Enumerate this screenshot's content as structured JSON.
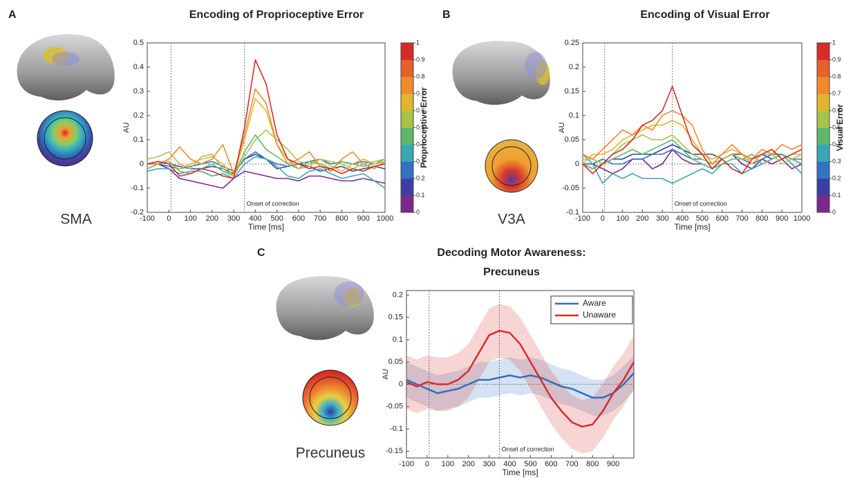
{
  "chart_data": [
    {
      "type": "line",
      "panel": "A",
      "title": "Encoding of Proprioceptive Error",
      "region": "SMA",
      "x_label": "Time [ms]",
      "y_label": "AU",
      "annotation": "Onset of correction",
      "x": [
        -100,
        -50,
        0,
        50,
        100,
        150,
        200,
        250,
        300,
        350,
        400,
        450,
        500,
        550,
        600,
        650,
        700,
        750,
        800,
        850,
        900,
        950,
        1000
      ],
      "xlim": [
        -100,
        1000
      ],
      "xticks": [
        -100,
        0,
        100,
        200,
        300,
        400,
        500,
        600,
        700,
        800,
        900,
        1000
      ],
      "ylim": [
        -0.2,
        0.5
      ],
      "yticks": [
        -0.2,
        -0.1,
        0,
        0.1,
        0.2,
        0.3,
        0.4,
        0.5
      ],
      "vlines": [
        10,
        350
      ],
      "hline": 0,
      "series": [
        {
          "color": "#7b2a8b",
          "values": [
            0,
            0,
            -0.02,
            -0.06,
            -0.07,
            -0.08,
            -0.09,
            -0.1,
            -0.06,
            -0.03,
            -0.04,
            -0.05,
            -0.06,
            -0.06,
            -0.07,
            -0.05,
            -0.05,
            -0.06,
            -0.07,
            -0.07,
            -0.06,
            -0.07,
            -0.08
          ]
        },
        {
          "color": "#3b3fa3",
          "values": [
            0,
            0.01,
            0,
            -0.01,
            -0.02,
            -0.02,
            -0.01,
            -0.02,
            -0.04,
            0.02,
            0.04,
            0.02,
            -0.02,
            -0.01,
            0,
            -0.01,
            -0.03,
            -0.02,
            -0.01,
            -0.03,
            -0.02,
            -0.01,
            -0.02
          ]
        },
        {
          "color": "#3172c2",
          "values": [
            0,
            0,
            -0.01,
            -0.02,
            -0.01,
            0,
            0.01,
            -0.01,
            -0.03,
            0.02,
            0.05,
            0.02,
            0,
            -0.01,
            0,
            0.01,
            0.02,
            0,
            0.01,
            0,
            0.01,
            0,
            0.01
          ]
        },
        {
          "color": "#3ba6b4",
          "values": [
            -0.03,
            -0.02,
            -0.02,
            -0.04,
            -0.03,
            -0.03,
            -0.05,
            -0.04,
            -0.06,
            0,
            0.03,
            0.02,
            -0.01,
            -0.05,
            -0.06,
            -0.03,
            -0.02,
            -0.04,
            -0.06,
            -0.05,
            -0.04,
            -0.07,
            -0.1
          ]
        },
        {
          "color": "#5db86e",
          "values": [
            -0.02,
            0,
            0.01,
            -0.03,
            -0.04,
            -0.02,
            0,
            -0.03,
            -0.05,
            0.05,
            0.12,
            0.06,
            0.03,
            0,
            -0.02,
            0.01,
            0,
            -0.02,
            0.01,
            0,
            -0.01,
            0,
            0.02
          ]
        },
        {
          "color": "#a7c44a",
          "values": [
            0.02,
            0.03,
            0.05,
            0,
            -0.02,
            0.03,
            0.04,
            -0.02,
            -0.05,
            0.03,
            0.1,
            0.14,
            0.1,
            0.06,
            0.01,
            0,
            0.02,
            0.01,
            0,
            -0.02,
            0,
            0.01,
            0.02
          ]
        },
        {
          "color": "#e2b52f",
          "values": [
            0,
            0.01,
            0,
            -0.02,
            0,
            0.02,
            0.03,
            0,
            -0.05,
            0.1,
            0.27,
            0.22,
            0.08,
            0.02,
            -0.02,
            -0.01,
            0.02,
            -0.01,
            -0.03,
            0,
            0.02,
            0,
            0.01
          ]
        },
        {
          "color": "#ef8a2e",
          "values": [
            0,
            0,
            0.02,
            0.07,
            0.02,
            0,
            0.02,
            0.08,
            -0.04,
            0.12,
            0.31,
            0.25,
            0.08,
            0,
            0.02,
            0.05,
            -0.01,
            -0.03,
            0.02,
            0.05,
            0,
            -0.02,
            0.01
          ]
        },
        {
          "color": "#d82b27",
          "values": [
            0,
            0.01,
            0,
            -0.05,
            -0.04,
            -0.02,
            -0.03,
            -0.05,
            -0.06,
            0.15,
            0.43,
            0.33,
            0.12,
            0.02,
            0,
            -0.02,
            -0.01,
            -0.02,
            -0.04,
            -0.02,
            -0.03,
            -0.01,
            0
          ]
        }
      ],
      "colorbar": {
        "label": "Proprioceptive Error",
        "clim": [
          0,
          1
        ],
        "ticks": [
          0,
          0.1,
          0.2,
          0.3,
          0.4,
          0.5,
          0.6,
          0.7,
          0.8,
          0.9,
          1
        ],
        "colors": [
          "#7b2a8b",
          "#3b3fa3",
          "#3172c2",
          "#3ba6b4",
          "#5db86e",
          "#a7c44a",
          "#e2b52f",
          "#ef8a2e",
          "#e6612a",
          "#d82b27"
        ]
      }
    },
    {
      "type": "line",
      "panel": "B",
      "title": "Encoding of Visual Error",
      "region": "V3A",
      "x_label": "Time [ms]",
      "y_label": "AU",
      "annotation": "Onset of correction",
      "x": [
        -100,
        -50,
        0,
        50,
        100,
        150,
        200,
        250,
        300,
        350,
        400,
        450,
        500,
        550,
        600,
        650,
        700,
        750,
        800,
        850,
        900,
        950,
        1000
      ],
      "xlim": [
        -100,
        1000
      ],
      "xticks": [
        -100,
        0,
        100,
        200,
        300,
        400,
        500,
        600,
        700,
        800,
        900,
        1000
      ],
      "ylim": [
        -0.1,
        0.25
      ],
      "yticks": [
        -0.1,
        -0.05,
        0,
        0.05,
        0.1,
        0.15,
        0.2,
        0.25
      ],
      "vlines": [
        10,
        350
      ],
      "hline": 0,
      "series": [
        {
          "color": "#7b2a8b",
          "values": [
            0,
            0,
            -0.01,
            -0.02,
            -0.01,
            0.01,
            0.01,
            -0.01,
            0,
            0.03,
            0.01,
            0,
            0,
            -0.01,
            0.01,
            0.02,
            0,
            -0.01,
            0.01,
            0,
            0.01,
            -0.01,
            0
          ]
        },
        {
          "color": "#3b3fa3",
          "values": [
            0,
            -0.01,
            0,
            0.01,
            0.01,
            0.02,
            0.02,
            0.02,
            0.03,
            0.04,
            0.03,
            0.02,
            0.02,
            0.02,
            0.01,
            0.02,
            0.02,
            0.01,
            0.02,
            0.01,
            0.02,
            0.01,
            0
          ]
        },
        {
          "color": "#3172c2",
          "values": [
            0,
            0,
            0.01,
            0,
            0,
            0.01,
            0.01,
            0.02,
            0.02,
            0.03,
            0.02,
            0.01,
            0.01,
            0,
            0.01,
            0.02,
            0.01,
            0,
            0.01,
            0.02,
            0.02,
            0.01,
            0.01
          ]
        },
        {
          "color": "#3ba6b4",
          "values": [
            0.02,
            0,
            -0.04,
            -0.02,
            -0.03,
            -0.02,
            -0.03,
            -0.03,
            -0.03,
            -0.04,
            -0.03,
            -0.02,
            -0.01,
            -0.02,
            0,
            0,
            -0.02,
            -0.01,
            0,
            0.01,
            0.02,
            0,
            -0.02
          ]
        },
        {
          "color": "#5db86e",
          "values": [
            0,
            -0.01,
            0,
            0.01,
            0.02,
            0.03,
            0.02,
            0.03,
            0.04,
            0.05,
            0.03,
            0.01,
            0,
            -0.01,
            0,
            0.01,
            0.01,
            0.02,
            0,
            0.01,
            0.02,
            0.01,
            0
          ]
        },
        {
          "color": "#a7c44a",
          "values": [
            0.01,
            0.01,
            0,
            0.02,
            0.04,
            0.05,
            0.06,
            0.05,
            0.05,
            0.06,
            0.04,
            0.02,
            0.01,
            0,
            0.01,
            0.02,
            0.01,
            0.01,
            0.02,
            0.02,
            0,
            0.01,
            0.02
          ]
        },
        {
          "color": "#e2b52f",
          "values": [
            0,
            0.02,
            0.02,
            0.03,
            0.05,
            0.06,
            0.07,
            0.08,
            0.08,
            0.09,
            0.08,
            0.05,
            0.02,
            0.01,
            0.02,
            0.03,
            0.02,
            0,
            0.02,
            0.03,
            0.01,
            0.02,
            0.02
          ]
        },
        {
          "color": "#ef8a2e",
          "values": [
            0.02,
            0.01,
            0.03,
            0.05,
            0.07,
            0.06,
            0.08,
            0.07,
            0.1,
            0.11,
            0.1,
            0.08,
            0.03,
            0,
            0.02,
            0.04,
            0.02,
            0.01,
            0.03,
            0.02,
            0.04,
            0.03,
            0.04
          ]
        },
        {
          "color": "#d82b27",
          "values": [
            0,
            -0.02,
            0,
            0.02,
            0.03,
            0.05,
            0.08,
            0.09,
            0.11,
            0.16,
            0.1,
            0.04,
            0.02,
            -0.01,
            0.01,
            -0.01,
            -0.02,
            0.01,
            0.02,
            0.03,
            0.01,
            0.02,
            0.03
          ]
        }
      ],
      "colorbar": {
        "label": "Visual Error",
        "clim": [
          0,
          1
        ],
        "ticks": [
          0,
          0.1,
          0.2,
          0.3,
          0.4,
          0.5,
          0.6,
          0.7,
          0.8,
          0.9,
          1
        ],
        "colors": [
          "#7b2a8b",
          "#3b3fa3",
          "#3172c2",
          "#3ba6b4",
          "#5db86e",
          "#a7c44a",
          "#e2b52f",
          "#ef8a2e",
          "#e6612a",
          "#d82b27"
        ]
      }
    },
    {
      "type": "line",
      "panel": "C",
      "title": [
        "Decoding Motor Awareness:",
        "Precuneus"
      ],
      "region": "Precuneus",
      "x_label": "Time [ms]",
      "y_label": "AU",
      "annotation": "Onset of correction",
      "x": [
        -100,
        -50,
        0,
        50,
        100,
        150,
        200,
        250,
        300,
        350,
        400,
        450,
        500,
        550,
        600,
        650,
        700,
        750,
        800,
        850,
        900,
        950,
        1000
      ],
      "xlim": [
        -100,
        1000
      ],
      "xticks": [
        -100,
        0,
        100,
        200,
        300,
        400,
        500,
        600,
        700,
        800,
        900
      ],
      "ylim": [
        -0.165,
        0.21
      ],
      "yticks": [
        -0.15,
        -0.1,
        -0.05,
        0,
        0.05,
        0.1,
        0.15,
        0.2
      ],
      "vlines": [
        10,
        350
      ],
      "hline": 0,
      "legend": "upper right",
      "series": [
        {
          "name": "Aware",
          "color": "#2e6fc0",
          "error": 0.04,
          "values": [
            0.01,
            0,
            -0.01,
            -0.02,
            -0.015,
            -0.01,
            0,
            0.01,
            0.01,
            0.015,
            0.02,
            0.015,
            0.02,
            0.015,
            0.005,
            -0.005,
            -0.01,
            -0.02,
            -0.03,
            -0.03,
            -0.02,
            0,
            0.025
          ]
        },
        {
          "name": "Unaware",
          "color": "#d82b2b",
          "error": 0.06,
          "values": [
            0.005,
            -0.005,
            0.005,
            0,
            0,
            0.01,
            0.03,
            0.07,
            0.11,
            0.12,
            0.115,
            0.09,
            0.05,
            0.01,
            -0.03,
            -0.06,
            -0.085,
            -0.095,
            -0.09,
            -0.06,
            -0.02,
            0.01,
            0.05
          ]
        }
      ]
    }
  ]
}
